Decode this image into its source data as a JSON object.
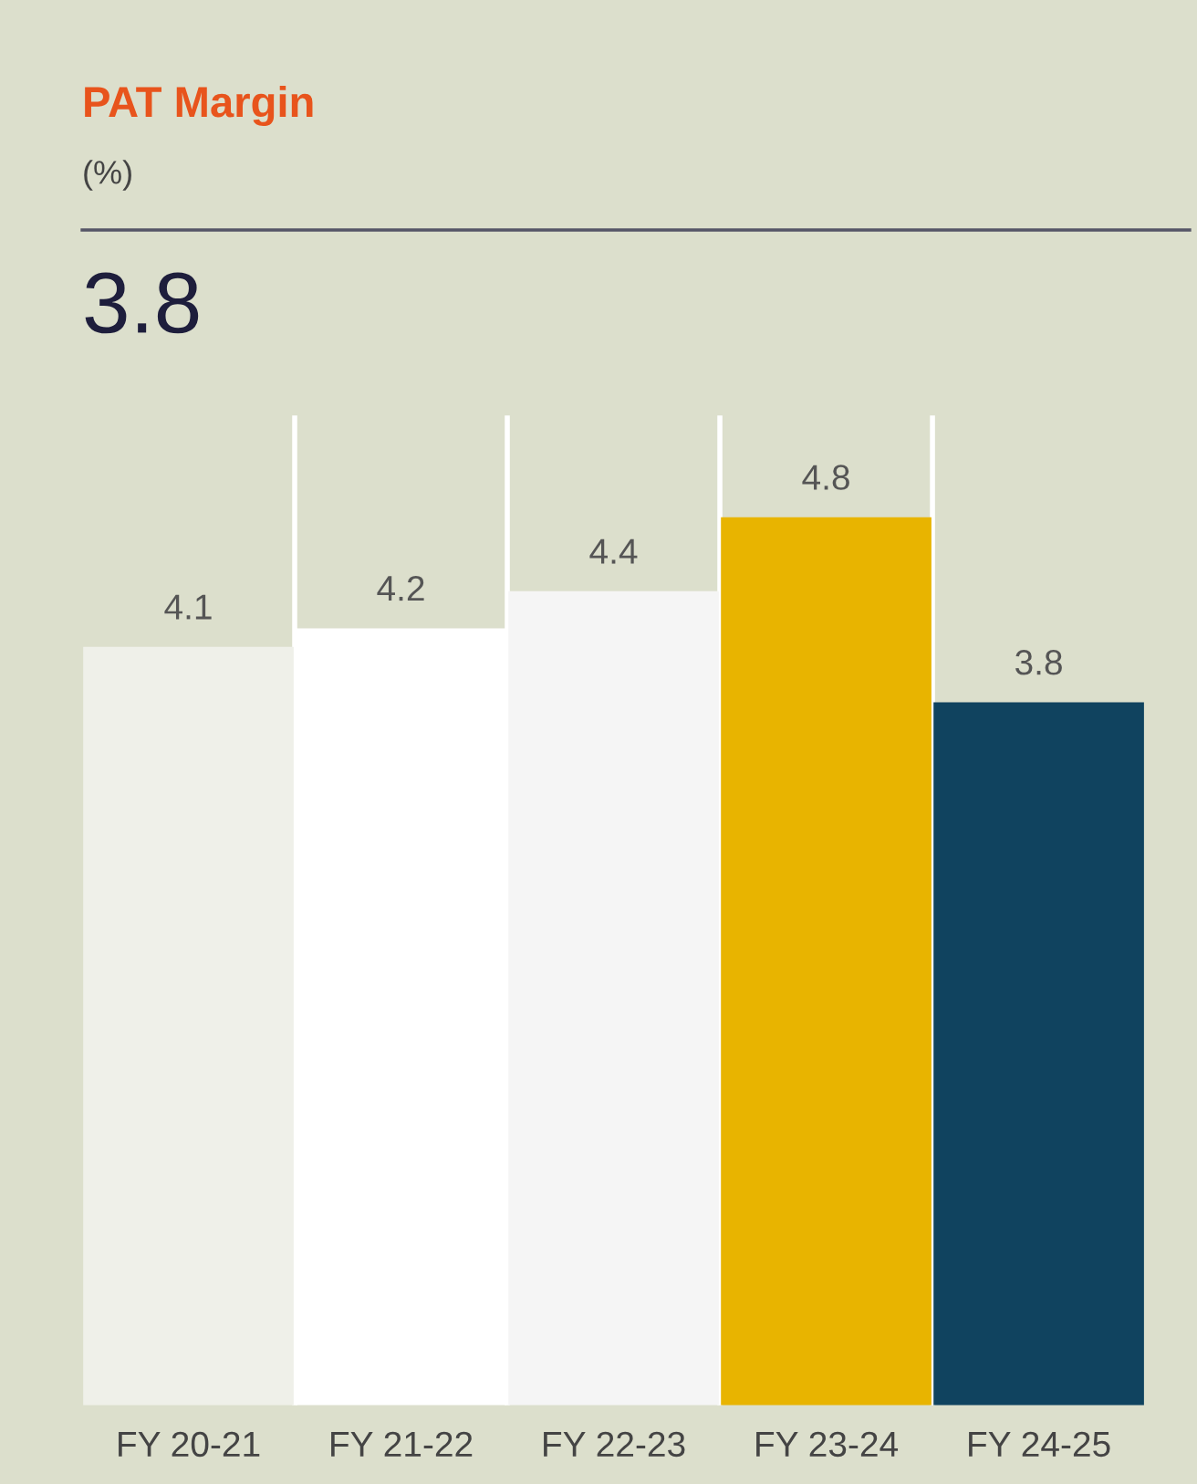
{
  "chart_data": {
    "type": "bar",
    "title": "PAT Margin",
    "subtitle": "(%)",
    "annotations": [
      "3.8"
    ],
    "categories": [
      "FY 20-21",
      "FY 21-22",
      "FY 22-23",
      "FY 23-24",
      "FY 24-25"
    ],
    "values": [
      4.1,
      4.2,
      4.4,
      4.8,
      3.8
    ],
    "colors": [
      "#eff0e9",
      "#ffffff",
      "#f5f5f5",
      "#e8b400",
      "#10435f"
    ],
    "ylim": [
      0,
      5.35
    ],
    "data_labels": true,
    "grid": false,
    "legend": false
  }
}
